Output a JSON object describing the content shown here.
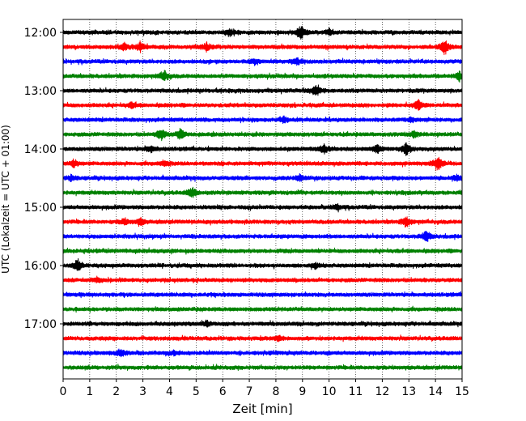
{
  "chart_data": {
    "type": "line",
    "xlabel": "Zeit  [min]",
    "ylabel": "UTC (Lokalzeit = UTC + 01:00)",
    "xlim": [
      0,
      15
    ],
    "x_ticks": [
      "0",
      "1",
      "2",
      "3",
      "4",
      "5",
      "6",
      "7",
      "8",
      "9",
      "10",
      "11",
      "12",
      "13",
      "14",
      "15"
    ],
    "grid": "vertical dotted",
    "y_ticks": [
      "12:00",
      "13:00",
      "14:00",
      "15:00",
      "16:00",
      "17:00"
    ],
    "trace_colors": [
      "#000000",
      "#ff0000",
      "#0000ff",
      "#008000"
    ],
    "series": [
      {
        "start": "12:00",
        "color": "#000000",
        "events": [
          [
            6.3,
            0.5
          ],
          [
            8.95,
            1.0
          ],
          [
            10.0,
            0.4
          ]
        ]
      },
      {
        "start": "12:15",
        "color": "#ff0000",
        "events": [
          [
            2.3,
            0.45
          ],
          [
            2.9,
            0.6
          ],
          [
            5.4,
            0.5
          ],
          [
            14.35,
            1.0
          ]
        ]
      },
      {
        "start": "12:30",
        "color": "#0000ff",
        "events": [
          [
            7.2,
            0.35
          ],
          [
            8.8,
            0.4
          ]
        ]
      },
      {
        "start": "12:45",
        "color": "#008000",
        "events": [
          [
            3.8,
            0.7
          ],
          [
            14.9,
            0.6
          ]
        ]
      },
      {
        "start": "13:00",
        "color": "#000000",
        "events": [
          [
            9.5,
            0.8
          ]
        ]
      },
      {
        "start": "13:15",
        "color": "#ff0000",
        "events": [
          [
            2.6,
            0.35
          ],
          [
            13.35,
            0.8
          ]
        ]
      },
      {
        "start": "13:30",
        "color": "#0000ff",
        "events": [
          [
            8.3,
            0.4
          ],
          [
            13.1,
            0.3
          ]
        ]
      },
      {
        "start": "13:45",
        "color": "#008000",
        "events": [
          [
            3.7,
            0.8
          ],
          [
            4.4,
            0.7
          ],
          [
            13.2,
            0.4
          ]
        ]
      },
      {
        "start": "14:00",
        "color": "#000000",
        "events": [
          [
            3.3,
            0.45
          ],
          [
            9.8,
            0.6
          ],
          [
            11.8,
            0.6
          ],
          [
            12.9,
            0.8
          ]
        ]
      },
      {
        "start": "14:15",
        "color": "#ff0000",
        "events": [
          [
            0.4,
            0.5
          ],
          [
            3.8,
            0.4
          ],
          [
            14.1,
            1.0
          ]
        ]
      },
      {
        "start": "14:30",
        "color": "#0000ff",
        "events": [
          [
            0.3,
            0.35
          ],
          [
            8.9,
            0.4
          ],
          [
            14.8,
            0.4
          ]
        ]
      },
      {
        "start": "14:45",
        "color": "#008000",
        "events": [
          [
            4.85,
            0.7
          ]
        ]
      },
      {
        "start": "15:00",
        "color": "#000000",
        "events": [
          [
            10.3,
            0.4
          ]
        ]
      },
      {
        "start": "15:15",
        "color": "#ff0000",
        "events": [
          [
            2.3,
            0.4
          ],
          [
            2.9,
            0.45
          ],
          [
            12.9,
            0.7
          ]
        ]
      },
      {
        "start": "15:30",
        "color": "#0000ff",
        "events": [
          [
            13.65,
            0.75
          ]
        ]
      },
      {
        "start": "15:45",
        "color": "#008000",
        "events": []
      },
      {
        "start": "16:00",
        "color": "#000000",
        "events": [
          [
            0.55,
            0.9
          ],
          [
            9.5,
            0.35
          ]
        ]
      },
      {
        "start": "16:15",
        "color": "#ff0000",
        "events": [
          [
            1.3,
            0.35
          ]
        ]
      },
      {
        "start": "16:30",
        "color": "#0000ff",
        "events": []
      },
      {
        "start": "16:45",
        "color": "#008000",
        "events": []
      },
      {
        "start": "17:00",
        "color": "#000000",
        "events": [
          [
            5.4,
            0.3
          ]
        ]
      },
      {
        "start": "17:15",
        "color": "#ff0000",
        "events": [
          [
            8.1,
            0.35
          ]
        ]
      },
      {
        "start": "17:30",
        "color": "#0000ff",
        "events": [
          [
            2.15,
            0.5
          ],
          [
            4.2,
            0.3
          ]
        ]
      },
      {
        "start": "17:45",
        "color": "#008000",
        "events": []
      }
    ]
  }
}
